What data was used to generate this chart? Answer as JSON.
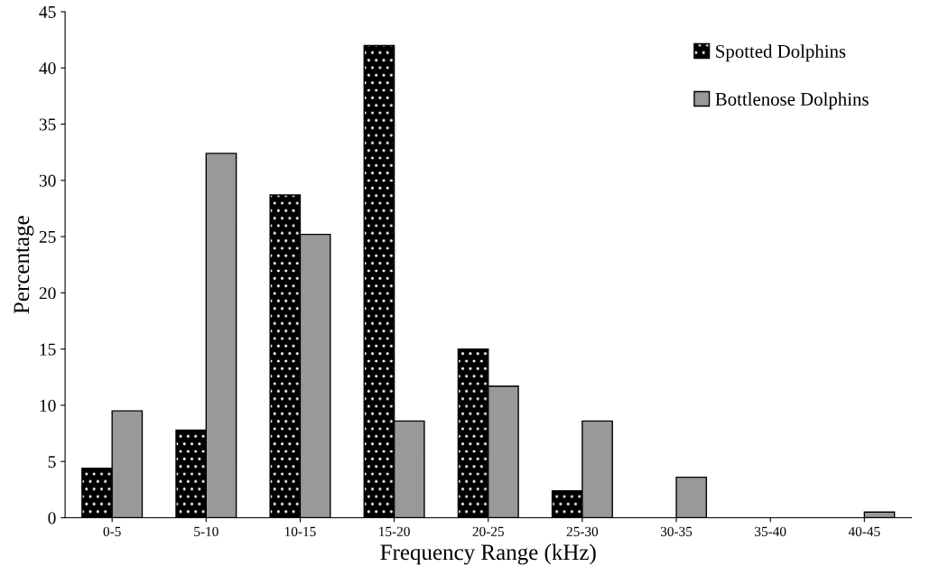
{
  "chart_data": {
    "type": "bar",
    "xlabel": "Frequency Range (kHz)",
    "ylabel": "Percentage",
    "categories": [
      "0-5",
      "5-10",
      "10-15",
      "15-20",
      "20-25",
      "25-30",
      "30-35",
      "35-40",
      "40-45"
    ],
    "series": [
      {
        "name": "Spotted Dolphins",
        "color": "#000000",
        "values": [
          4.4,
          7.8,
          28.7,
          42.0,
          15.0,
          2.4,
          0,
          0,
          0
        ]
      },
      {
        "name": "Bottlenose Dolphins",
        "color": "#999999",
        "values": [
          9.5,
          32.4,
          25.2,
          8.6,
          11.7,
          8.6,
          3.6,
          0,
          0.5
        ]
      }
    ],
    "ylim": [
      0,
      45
    ],
    "yticks": [
      0,
      5,
      10,
      15,
      20,
      25,
      30,
      35,
      40,
      45
    ],
    "grid": false,
    "legend": "top right"
  }
}
